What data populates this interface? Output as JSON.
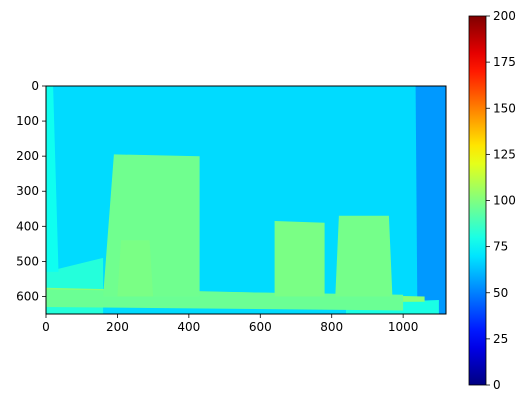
{
  "chart_data": {
    "type": "heatmap",
    "title": "",
    "xlabel": "",
    "ylabel": "",
    "image_extent": {
      "x": [
        0,
        1120
      ],
      "y": [
        0,
        650
      ]
    },
    "xlim": [
      0,
      1120
    ],
    "ylim": [
      650,
      0
    ],
    "x_ticks": [
      0,
      200,
      400,
      600,
      800,
      1000
    ],
    "y_ticks": [
      0,
      100,
      200,
      300,
      400,
      500,
      600
    ],
    "colormap": "jet",
    "color_range": [
      0,
      200
    ],
    "colorbar_ticks": [
      0,
      25,
      50,
      75,
      100,
      125,
      150,
      175,
      200
    ],
    "background_value": 68,
    "regions": [
      {
        "label": "background wall",
        "polygon": [
          [
            0,
            0
          ],
          [
            1040,
            0
          ],
          [
            1040,
            650
          ],
          [
            0,
            650
          ]
        ],
        "value": 68
      },
      {
        "label": "right edge strip",
        "polygon": [
          [
            1035,
            0
          ],
          [
            1120,
            0
          ],
          [
            1120,
            650
          ],
          [
            1040,
            650
          ]
        ],
        "value": 55
      },
      {
        "label": "floor left",
        "polygon": [
          [
            0,
            530
          ],
          [
            160,
            490
          ],
          [
            160,
            650
          ],
          [
            0,
            650
          ]
        ],
        "value": 82
      },
      {
        "label": "left wall",
        "polygon": [
          [
            0,
            0
          ],
          [
            20,
            0
          ],
          [
            35,
            530
          ],
          [
            0,
            530
          ]
        ],
        "value": 78
      },
      {
        "label": "floor right",
        "polygon": [
          [
            840,
            620
          ],
          [
            1100,
            610
          ],
          [
            1100,
            650
          ],
          [
            840,
            650
          ]
        ],
        "value": 80
      },
      {
        "label": "table plank",
        "polygon": [
          [
            0,
            575
          ],
          [
            1060,
            600
          ],
          [
            1060,
            615
          ],
          [
            0,
            620
          ]
        ],
        "value": 102
      },
      {
        "label": "table surface",
        "polygon": [
          [
            0,
            580
          ],
          [
            1000,
            595
          ],
          [
            1000,
            640
          ],
          [
            0,
            630
          ]
        ],
        "value": 96
      },
      {
        "label": "box 1",
        "polygon": [
          [
            190,
            195
          ],
          [
            430,
            200
          ],
          [
            430,
            600
          ],
          [
            160,
            600
          ]
        ],
        "value": 97
      },
      {
        "label": "box 2 (rounded)",
        "polygon": [
          [
            210,
            440
          ],
          [
            290,
            440
          ],
          [
            300,
            600
          ],
          [
            200,
            600
          ]
        ],
        "value": 99
      },
      {
        "label": "box 3",
        "polygon": [
          [
            640,
            385
          ],
          [
            780,
            390
          ],
          [
            780,
            600
          ],
          [
            640,
            600
          ]
        ],
        "value": 99
      },
      {
        "label": "box 4",
        "polygon": [
          [
            820,
            370
          ],
          [
            960,
            370
          ],
          [
            970,
            600
          ],
          [
            810,
            600
          ]
        ],
        "value": 98
      }
    ]
  }
}
